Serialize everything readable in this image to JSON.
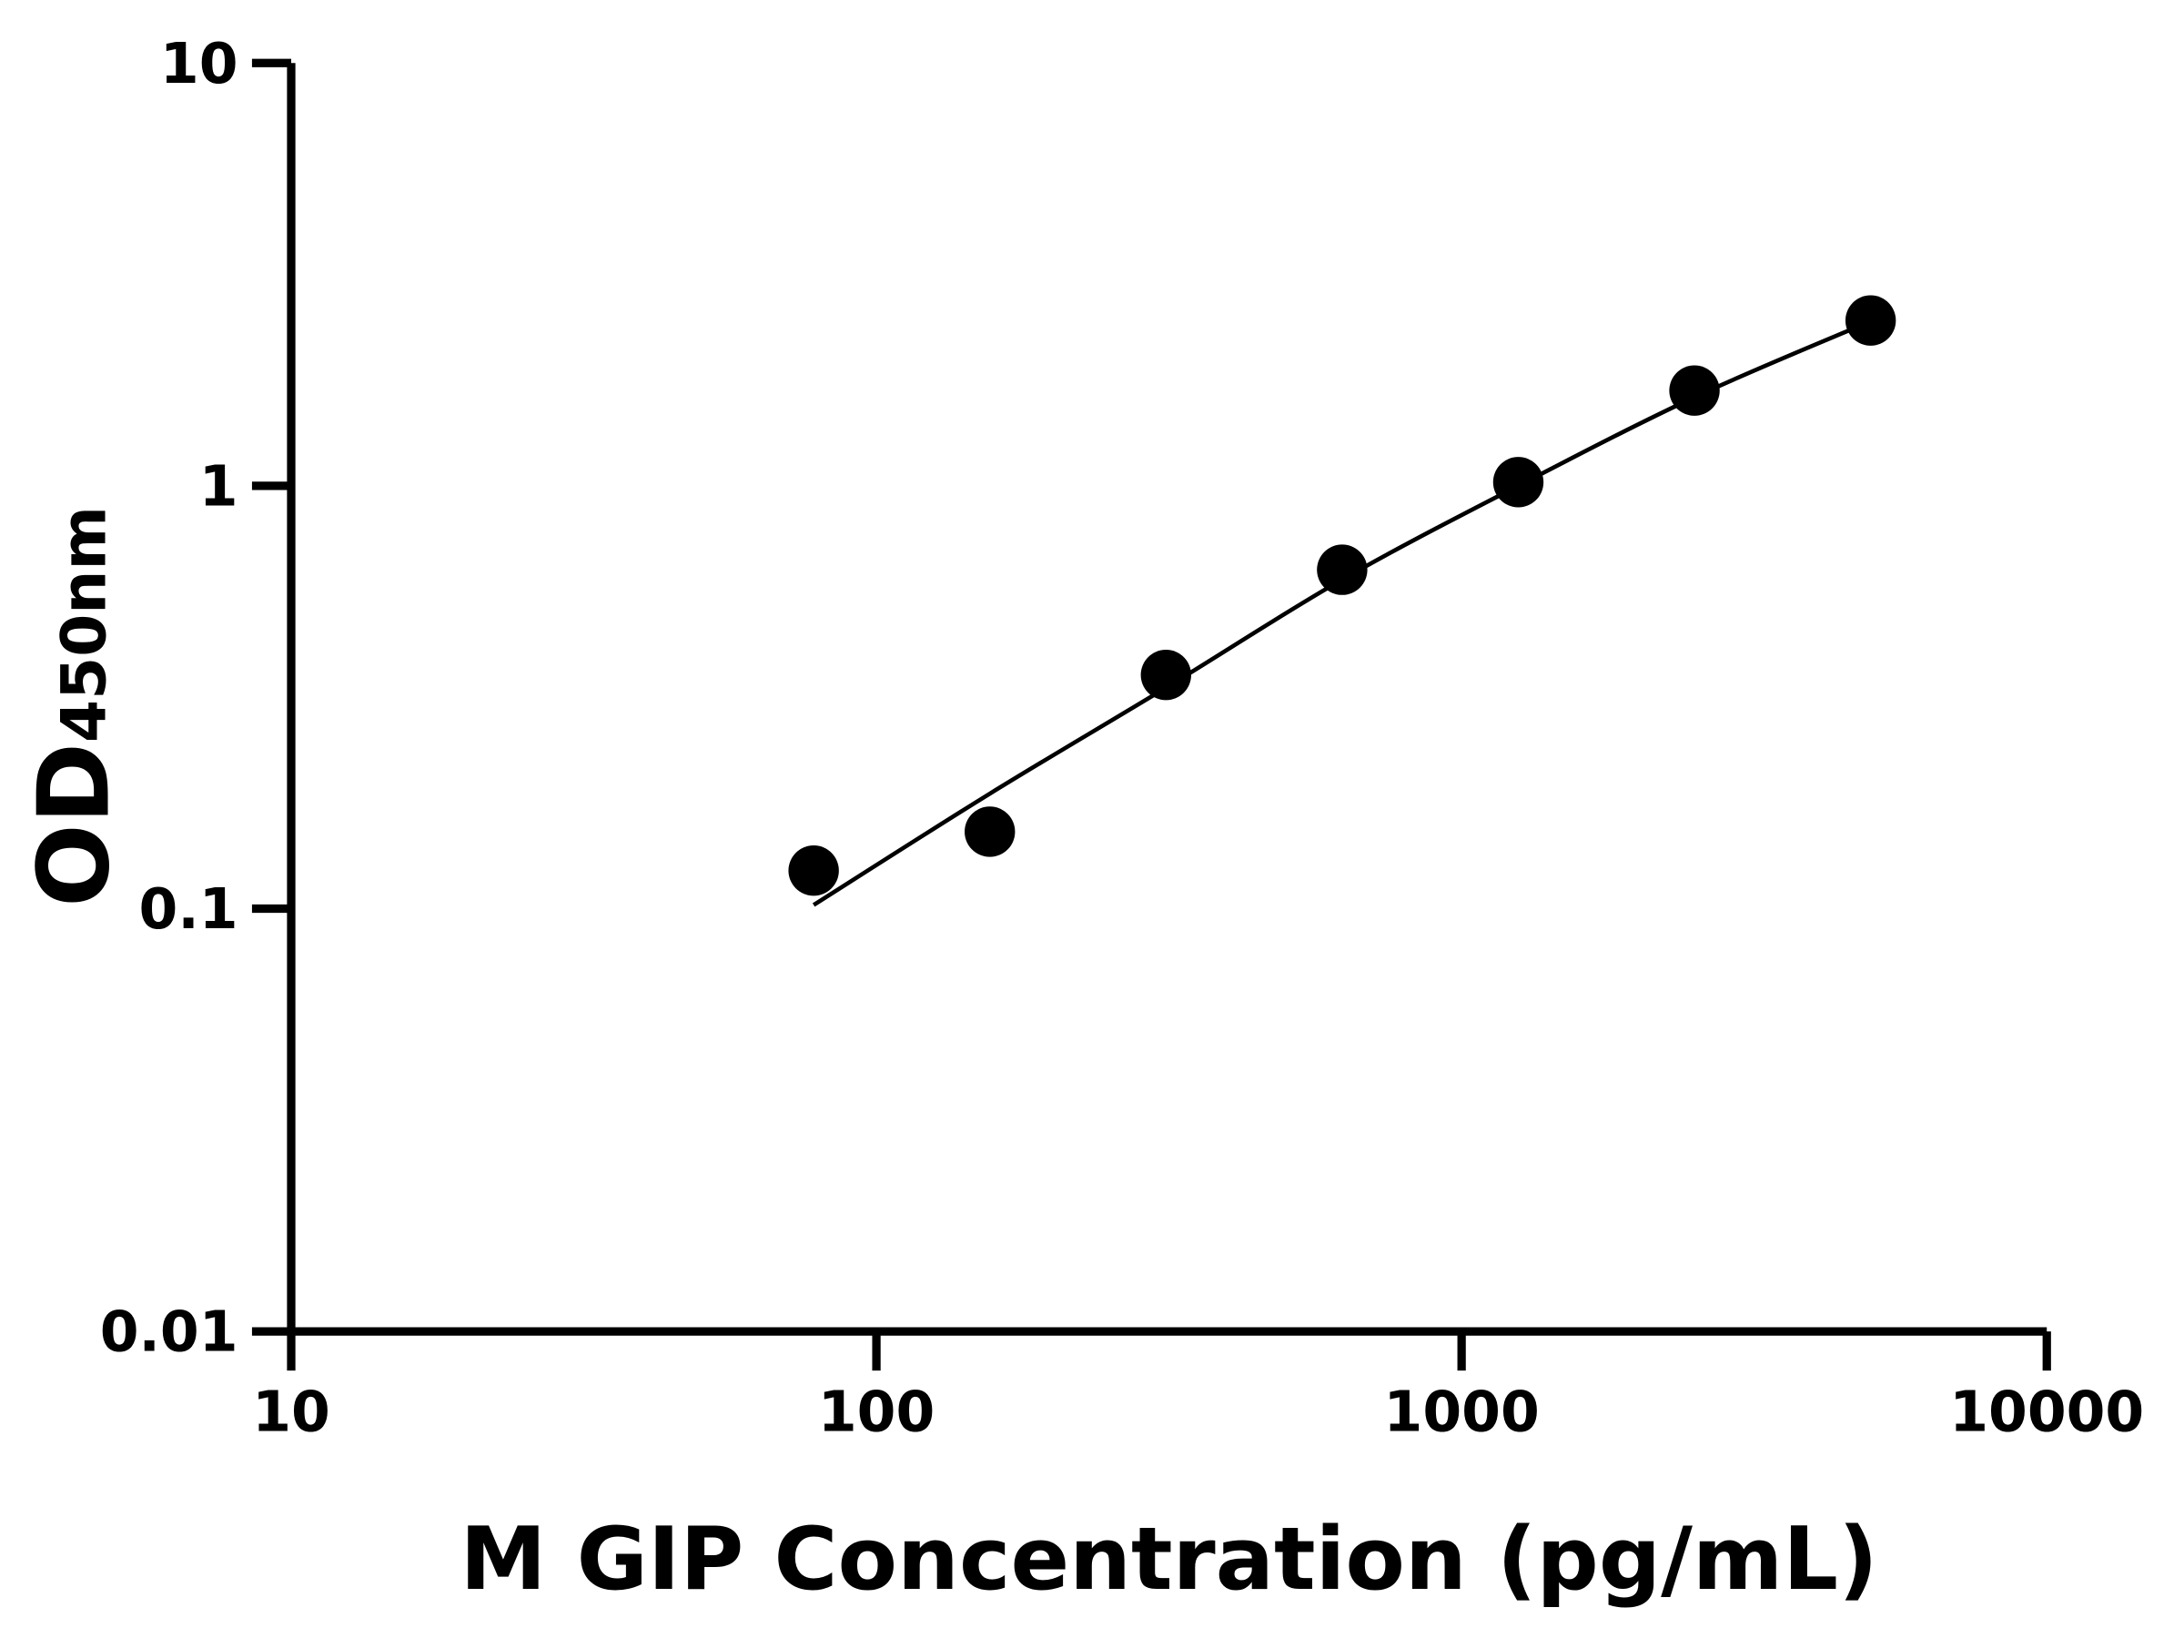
{
  "chart_data": {
    "type": "scatter",
    "title": "",
    "xlabel": "M GIP Concentration (pg/mL)",
    "ylabel": "OD",
    "ylabel_subscript": "450nm",
    "x_scale": "log",
    "y_scale": "log",
    "xlim": [
      10,
      10000
    ],
    "ylim": [
      0.01,
      10
    ],
    "x_ticks": [
      "10",
      "100",
      "1000",
      "10000"
    ],
    "y_ticks": [
      "0.01",
      "0.1",
      "1",
      "10"
    ],
    "grid": false,
    "points": [
      {
        "x": 78.125,
        "y": 0.123
      },
      {
        "x": 156.25,
        "y": 0.152
      },
      {
        "x": 312.5,
        "y": 0.357
      },
      {
        "x": 625,
        "y": 0.633
      },
      {
        "x": 1250,
        "y": 1.02
      },
      {
        "x": 2500,
        "y": 1.68
      },
      {
        "x": 5000,
        "y": 2.46
      }
    ],
    "fit_curve": [
      {
        "x": 78.125,
        "y": 0.102
      },
      {
        "x": 156.25,
        "y": 0.187
      },
      {
        "x": 312.5,
        "y": 0.333
      },
      {
        "x": 625,
        "y": 0.6
      },
      {
        "x": 1250,
        "y": 1.0
      },
      {
        "x": 2500,
        "y": 1.62
      },
      {
        "x": 5000,
        "y": 2.45
      }
    ],
    "colors": {
      "points": "#000000",
      "line": "#000000",
      "axes": "#000000"
    }
  }
}
